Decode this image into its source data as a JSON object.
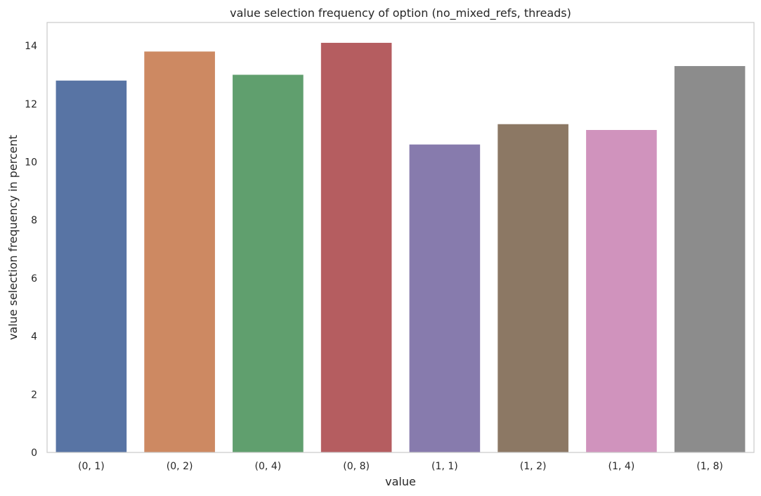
{
  "chart_data": {
    "type": "bar",
    "title": "value selection frequency of option (no_mixed_refs, threads)",
    "xlabel": "value",
    "ylabel": "value selection frequency in percent",
    "categories": [
      "(0, 1)",
      "(0, 2)",
      "(0, 4)",
      "(0, 8)",
      "(1, 1)",
      "(1, 2)",
      "(1, 4)",
      "(1, 8)"
    ],
    "values": [
      12.8,
      13.8,
      13.0,
      14.1,
      10.6,
      11.3,
      11.1,
      13.3
    ],
    "colors": [
      "#5874a4",
      "#cd8962",
      "#609f6e",
      "#b55d60",
      "#877bad",
      "#8c7864",
      "#d093bd",
      "#8c8c8c"
    ],
    "ylim": [
      0,
      14.8
    ],
    "yticks": [
      0,
      2,
      4,
      6,
      8,
      10,
      12,
      14
    ],
    "grid": false,
    "legend": "none"
  }
}
